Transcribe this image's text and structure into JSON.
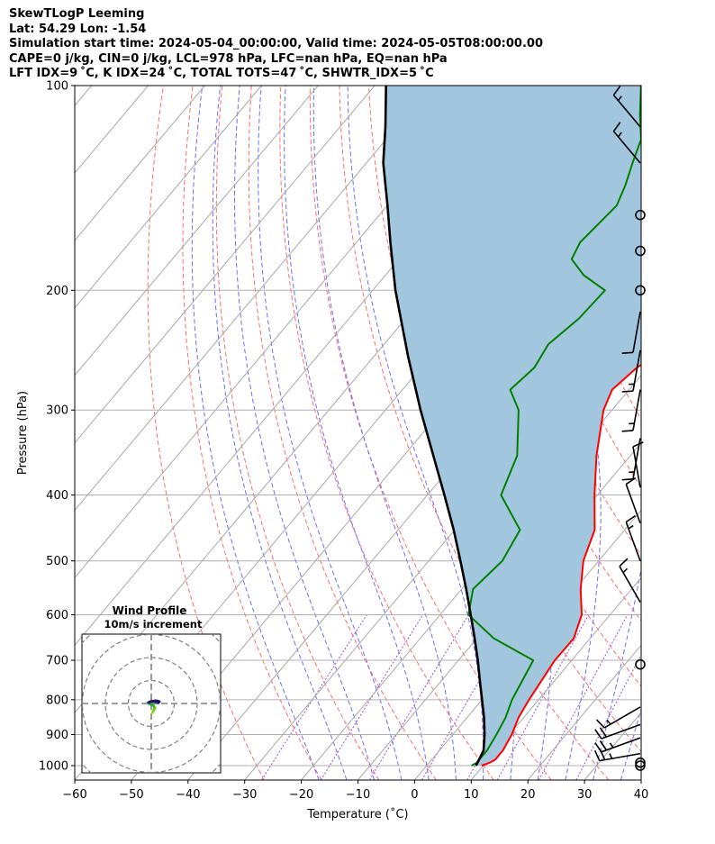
{
  "header": {
    "title": "SkewTLogP Leeming",
    "location": "Lat: 54.29   Lon: -1.54",
    "times": "Simulation start time: 2024-05-04_00:00:00, Valid time: 2024-05-05T08:00:00.00",
    "indices1": "CAPE=0 j/kg, CIN=0 j/kg, LCL=978 hPa, LFC=nan hPa, EQ=nan hPa",
    "indices2": "LFT IDX=9 ˚C, K IDX=24 ˚C, TOTAL TOTS=47 ˚C, SHWTR_IDX=5 ˚C"
  },
  "colors": {
    "temperature": "#ff0000",
    "dewpoint": "#008000",
    "parcel": "#000000",
    "shade": "#a3c6df",
    "dry_adiabat": "#ff6b6b",
    "moist_adiabat": "#6b6bff",
    "mixing_ratio": "#9b4fc8",
    "isotherm": "#a8a8a8"
  },
  "chart_data": {
    "type": "skew-t",
    "xlabel": "Temperature (˚C)",
    "ylabel": "Pressure (hPa)",
    "xlim": [
      -60,
      40
    ],
    "ylim": [
      1050,
      100
    ],
    "x_ticks": [
      "−60",
      "−50",
      "−40",
      "−30",
      "−20",
      "−10",
      "0",
      "10",
      "20",
      "30",
      "40"
    ],
    "y_ticks": [
      1000,
      900,
      800,
      700,
      600,
      500,
      400,
      300,
      200,
      100
    ],
    "y_scale": "log",
    "grid": true,
    "series": [
      {
        "key": "temperature",
        "pressure": [
          1000,
          990,
          980,
          950,
          900,
          850,
          800,
          700,
          650,
          600,
          550,
          500,
          450,
          400,
          350,
          300,
          280,
          260,
          240,
          220,
          200,
          180,
          160,
          150,
          140,
          120,
          110,
          100
        ],
        "temp": [
          9.7,
          10.7,
          11.2,
          11.2,
          10.4,
          9.1,
          8.3,
          7.0,
          7.1,
          5.0,
          1.0,
          -2.7,
          -5.3,
          -10.5,
          -16.0,
          -21.5,
          -23.0,
          -21.9,
          -19.0,
          -15.0,
          -11.5,
          -10.0,
          -8.0,
          -9.0,
          -10.8,
          -16.6,
          -20.4,
          -24.9
        ]
      },
      {
        "key": "dewpoint",
        "pressure": [
          1000,
          990,
          980,
          950,
          900,
          850,
          800,
          700,
          650,
          600,
          550,
          500,
          450,
          400,
          350,
          300,
          280,
          260,
          240,
          220,
          200,
          190,
          180,
          170,
          160,
          150,
          140,
          130,
          120,
          110,
          100
        ],
        "temp": [
          7.9,
          8.4,
          8.4,
          8.4,
          7.7,
          6.8,
          5.3,
          3.2,
          -7.0,
          -15.0,
          -18.0,
          -17.0,
          -18.5,
          -27.0,
          -30.0,
          -36.5,
          -41.0,
          -40.0,
          -41.0,
          -39.4,
          -39.0,
          -45.0,
          -49.5,
          -50.5,
          -50.0,
          -49.5,
          -51.0,
          -53.0,
          -55.0,
          -59.0,
          -63.0
        ]
      },
      {
        "key": "parcel",
        "pressure": [
          1000,
          950,
          900,
          850,
          800,
          750,
          700,
          650,
          600,
          550,
          500,
          450,
          400,
          350,
          300,
          250,
          200,
          170,
          150,
          130,
          115,
          100
        ],
        "temp": [
          8.7,
          7.8,
          5.6,
          3.0,
          0.0,
          -3.2,
          -6.6,
          -10.4,
          -14.6,
          -19.2,
          -24.4,
          -30.2,
          -37.0,
          -44.8,
          -53.8,
          -64.0,
          -76.0,
          -84.0,
          -90.0,
          -97.0,
          -102.0,
          -108.0
        ]
      }
    ],
    "winds": [
      {
        "pressure": 1000,
        "speed": 0
      },
      {
        "pressure": 990,
        "speed": 0
      },
      {
        "pressure": 960,
        "speed": 25,
        "dir": 260
      },
      {
        "pressure": 910,
        "speed": 25,
        "dir": 250
      },
      {
        "pressure": 870,
        "speed": 20,
        "dir": 250
      },
      {
        "pressure": 820,
        "speed": 15,
        "dir": 240
      },
      {
        "pressure": 710,
        "speed": 0
      },
      {
        "pressure": 575,
        "speed": 15,
        "dir": 330
      },
      {
        "pressure": 500,
        "speed": 15,
        "dir": 340
      },
      {
        "pressure": 440,
        "speed": 10,
        "dir": 340
      },
      {
        "pressure": 390,
        "speed": 10,
        "dir": 350
      },
      {
        "pressure": 330,
        "speed": 15,
        "dir": 190
      },
      {
        "pressure": 280,
        "speed": 15,
        "dir": 190
      },
      {
        "pressure": 245,
        "speed": 15,
        "dir": 190
      },
      {
        "pressure": 215,
        "speed": 10,
        "dir": 190
      },
      {
        "pressure": 200,
        "speed": 0
      },
      {
        "pressure": 175,
        "speed": 0
      },
      {
        "pressure": 155,
        "speed": 0
      },
      {
        "pressure": 130,
        "speed": 15,
        "dir": 320
      },
      {
        "pressure": 115,
        "speed": 15,
        "dir": 320
      }
    ],
    "hodograph": {
      "title1": "Wind Profile",
      "title2": "10m/s increment",
      "u": [
        0.5,
        1.0,
        1.5,
        1.0,
        0.0,
        -1.0,
        -1.5,
        -0.5,
        0.5,
        1.5,
        2.5,
        3.0,
        3.5,
        2.0,
        0.0,
        -1.0
      ],
      "v": [
        -4.0,
        -3.0,
        -2.0,
        -1.0,
        -0.5,
        0.0,
        0.3,
        0.8,
        1.0,
        0.6,
        0.5,
        0.3,
        0.8,
        1.2,
        0.9,
        0.5
      ]
    }
  }
}
